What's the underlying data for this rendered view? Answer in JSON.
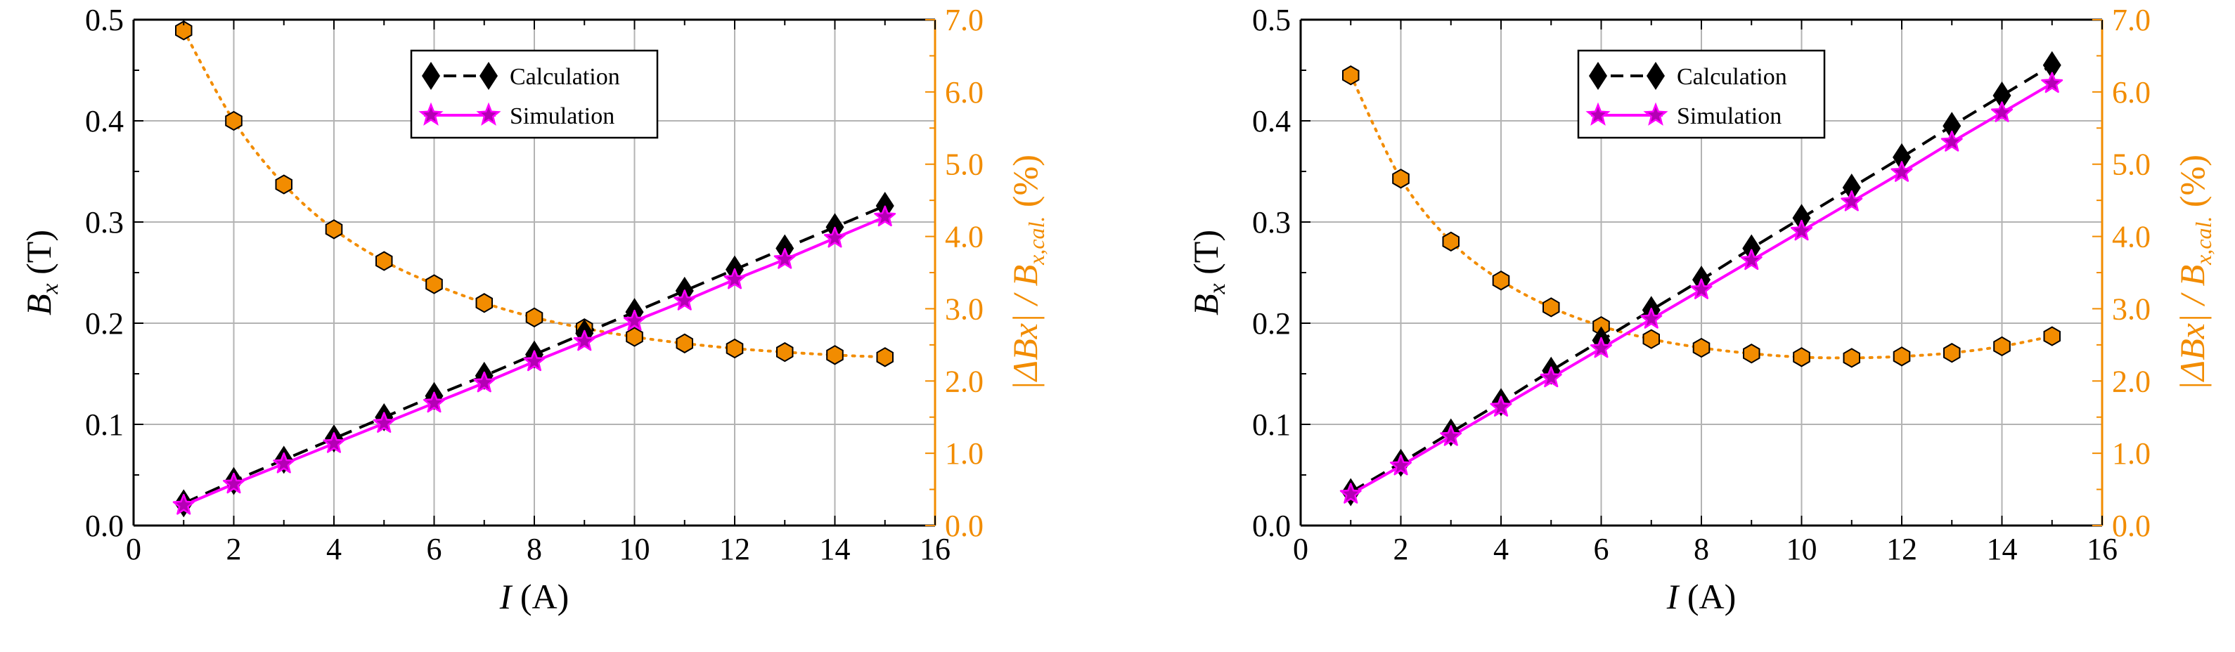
{
  "colors": {
    "calculation": "#000000",
    "simulation_line": "#ff00ff",
    "simulation_marker": "#b400b4",
    "error": "#f28c00",
    "grid": "#b3b3b3"
  },
  "chart_data": [
    {
      "type": "line",
      "panel": "left",
      "x": [
        1,
        2,
        3,
        4,
        5,
        6,
        7,
        8,
        9,
        10,
        11,
        12,
        13,
        14,
        15
      ],
      "xlabel": {
        "symbol": "I",
        "unit": " (A)"
      },
      "ylabel": {
        "symbol": "B",
        "sub": "x",
        "unit": " (T)"
      },
      "y2label": {
        "prefix": "|ΔBx| / B",
        "sub": "x,cal.",
        "unit": " (%)"
      },
      "xlim": [
        0,
        16
      ],
      "ylim": [
        0,
        0.5
      ],
      "y2lim": [
        0,
        7
      ],
      "xticks": [
        "0",
        "2",
        "4",
        "6",
        "8",
        "10",
        "12",
        "14",
        "16"
      ],
      "yticks": [
        "0.0",
        "0.1",
        "0.2",
        "0.3",
        "0.4",
        "0.5"
      ],
      "y2ticks": [
        "0.0",
        "1.0",
        "2.0",
        "3.0",
        "4.0",
        "5.0",
        "6.0",
        "7.0"
      ],
      "grid": true,
      "legend_position": "top-center",
      "series": [
        {
          "name": "Calculation",
          "axis": "left",
          "marker": "diamond",
          "line": "dashed",
          "values": [
            0.022,
            0.044,
            0.065,
            0.086,
            0.107,
            0.128,
            0.148,
            0.169,
            0.19,
            0.211,
            0.232,
            0.253,
            0.274,
            0.295,
            0.316
          ]
        },
        {
          "name": "Simulation",
          "axis": "left",
          "marker": "star",
          "line": "solid",
          "values": [
            0.02,
            0.041,
            0.061,
            0.081,
            0.101,
            0.121,
            0.141,
            0.162,
            0.182,
            0.202,
            0.222,
            0.243,
            0.263,
            0.284,
            0.305
          ]
        },
        {
          "name": "|ΔBx| / Bx,cal.",
          "axis": "right",
          "marker": "hexagon",
          "line": "dotted",
          "values": [
            6.85,
            5.6,
            4.72,
            4.1,
            3.66,
            3.34,
            3.08,
            2.88,
            2.73,
            2.61,
            2.52,
            2.45,
            2.4,
            2.36,
            2.33
          ]
        }
      ]
    },
    {
      "type": "line",
      "panel": "right",
      "x": [
        1,
        2,
        3,
        4,
        5,
        6,
        7,
        8,
        9,
        10,
        11,
        12,
        13,
        14,
        15
      ],
      "xlabel": {
        "symbol": "I",
        "unit": " (A)"
      },
      "ylabel": {
        "symbol": "B",
        "sub": "x",
        "unit": " (T)"
      },
      "y2label": {
        "prefix": "|ΔBx| / B",
        "sub": "x,cal.",
        "unit": " (%)"
      },
      "xlim": [
        0,
        16
      ],
      "ylim": [
        0,
        0.5
      ],
      "y2lim": [
        0,
        7
      ],
      "xticks": [
        "0",
        "2",
        "4",
        "6",
        "8",
        "10",
        "12",
        "14",
        "16"
      ],
      "yticks": [
        "0.0",
        "0.1",
        "0.2",
        "0.3",
        "0.4",
        "0.5"
      ],
      "y2ticks": [
        "0.0",
        "1.0",
        "2.0",
        "3.0",
        "4.0",
        "5.0",
        "6.0",
        "7.0"
      ],
      "grid": true,
      "legend_position": "top-center",
      "series": [
        {
          "name": "Calculation",
          "axis": "left",
          "marker": "diamond",
          "line": "dashed",
          "values": [
            0.033,
            0.062,
            0.092,
            0.122,
            0.153,
            0.183,
            0.213,
            0.243,
            0.274,
            0.304,
            0.334,
            0.364,
            0.395,
            0.425,
            0.455
          ]
        },
        {
          "name": "Simulation",
          "axis": "left",
          "marker": "star",
          "line": "solid",
          "values": [
            0.031,
            0.059,
            0.088,
            0.117,
            0.146,
            0.175,
            0.204,
            0.233,
            0.262,
            0.291,
            0.32,
            0.349,
            0.379,
            0.408,
            0.437
          ]
        },
        {
          "name": "|ΔBx| / Bx,cal.",
          "axis": "right",
          "marker": "hexagon",
          "line": "dotted",
          "values": [
            6.23,
            4.8,
            3.93,
            3.39,
            3.02,
            2.76,
            2.58,
            2.46,
            2.38,
            2.33,
            2.32,
            2.34,
            2.39,
            2.48,
            2.62
          ]
        }
      ]
    }
  ]
}
